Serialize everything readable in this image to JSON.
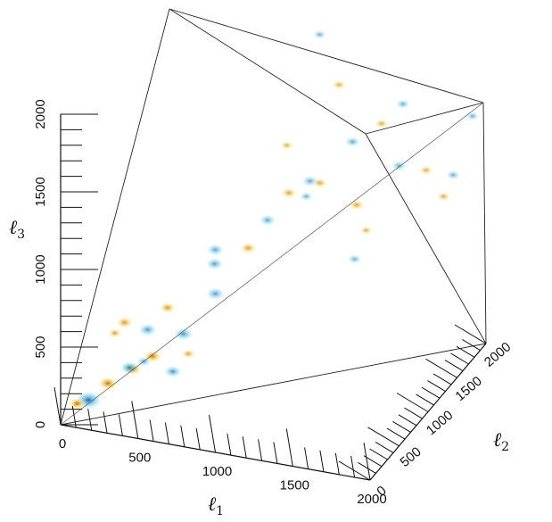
{
  "chart_data": {
    "type": "3d-isosurface",
    "axes": [
      {
        "name": "l1",
        "label": "ℓ",
        "subscript": "1",
        "ticks": [
          0,
          500,
          1000,
          1500,
          2000
        ],
        "range": [
          0,
          2000
        ]
      },
      {
        "name": "l2",
        "label": "ℓ",
        "subscript": "2",
        "ticks": [
          0,
          500,
          1000,
          1500,
          2000
        ],
        "range": [
          0,
          2000
        ]
      },
      {
        "name": "l3",
        "label": "ℓ",
        "subscript": "3",
        "ticks": [
          0,
          500,
          1000,
          1500,
          2000
        ],
        "range": [
          0,
          2000
        ]
      }
    ],
    "colors": {
      "positive_high": "#b85a1c",
      "positive_mid": "#e8a423",
      "positive_low": "#f5dc5a",
      "negative_low": "#6fd6ee",
      "negative_mid": "#47a6d6",
      "negative_high": "#1d4c9e"
    },
    "blobs": [
      {
        "pos": [
          150,
          80,
          150
        ],
        "sign": -1,
        "amp": 1.0,
        "size": 240
      },
      {
        "pos": [
          80,
          70,
          120
        ],
        "sign": 1,
        "amp": 1.0,
        "size": 150
      },
      {
        "pos": [
          260,
          120,
          260
        ],
        "sign": 1,
        "amp": 0.9,
        "size": 180
      },
      {
        "pos": [
          420,
          120,
          380
        ],
        "sign": 1,
        "amp": 0.8,
        "size": 170
      },
      {
        "pos": [
          350,
          250,
          320
        ],
        "sign": -1,
        "amp": 0.7,
        "size": 170
      },
      {
        "pos": [
          500,
          250,
          420
        ],
        "sign": 1,
        "amp": 0.8,
        "size": 170
      },
      {
        "pos": [
          620,
          280,
          330
        ],
        "sign": -1,
        "amp": 0.6,
        "size": 160
      },
      {
        "pos": [
          700,
          250,
          600
        ],
        "sign": -1,
        "amp": 0.5,
        "size": 180
      },
      {
        "pos": [
          420,
          380,
          520
        ],
        "sign": -1,
        "amp": 0.5,
        "size": 170
      },
      {
        "pos": [
          300,
          300,
          580
        ],
        "sign": 1,
        "amp": 0.5,
        "size": 160
      },
      {
        "pos": [
          560,
          350,
          700
        ],
        "sign": 1,
        "amp": 0.55,
        "size": 150
      },
      {
        "pos": [
          850,
          400,
          820
        ],
        "sign": -1,
        "amp": 0.45,
        "size": 170
      },
      {
        "pos": [
          800,
          520,
          950
        ],
        "sign": -1,
        "amp": 0.45,
        "size": 160
      },
      {
        "pos": [
          950,
          700,
          1000
        ],
        "sign": 1,
        "amp": 0.4,
        "size": 160
      },
      {
        "pos": [
          700,
          800,
          900
        ],
        "sign": -1,
        "amp": 0.4,
        "size": 160
      },
      {
        "pos": [
          1000,
          900,
          1100
        ],
        "sign": -1,
        "amp": 0.4,
        "size": 150
      },
      {
        "pos": [
          1100,
          1000,
          1250
        ],
        "sign": 1,
        "amp": 0.35,
        "size": 150
      },
      {
        "pos": [
          1200,
          1100,
          1300
        ],
        "sign": -1,
        "amp": 0.35,
        "size": 150
      },
      {
        "pos": [
          1300,
          1000,
          1350
        ],
        "sign": 1,
        "amp": 0.35,
        "size": 140
      },
      {
        "pos": [
          1400,
          1300,
          1500
        ],
        "sign": -1,
        "amp": 0.35,
        "size": 140
      },
      {
        "pos": [
          1550,
          1400,
          1600
        ],
        "sign": 1,
        "amp": 0.3,
        "size": 130
      },
      {
        "pos": [
          1650,
          1500,
          1700
        ],
        "sign": -1,
        "amp": 0.3,
        "size": 130
      },
      {
        "pos": [
          1500,
          1100,
          1200
        ],
        "sign": 1,
        "amp": 0.35,
        "size": 150
      },
      {
        "pos": [
          1700,
          1300,
          1400
        ],
        "sign": -1,
        "amp": 0.3,
        "size": 140
      },
      {
        "pos": [
          1800,
          1500,
          1300
        ],
        "sign": 1,
        "amp": 0.3,
        "size": 130
      },
      {
        "pos": [
          1900,
          1700,
          1200
        ],
        "sign": -1,
        "amp": 0.3,
        "size": 130
      },
      {
        "pos": [
          1800,
          1800,
          1000
        ],
        "sign": 1,
        "amp": 0.3,
        "size": 130
      },
      {
        "pos": [
          1950,
          1900,
          1500
        ],
        "sign": -1,
        "amp": 0.3,
        "size": 120
      },
      {
        "pos": [
          1200,
          1600,
          1700
        ],
        "sign": 1,
        "amp": 0.3,
        "size": 130
      },
      {
        "pos": [
          1000,
          1800,
          1900
        ],
        "sign": -1,
        "amp": 0.3,
        "size": 120
      },
      {
        "pos": [
          900,
          1500,
          1300
        ],
        "sign": 1,
        "amp": 0.3,
        "size": 120
      },
      {
        "pos": [
          1600,
          800,
          1000
        ],
        "sign": -1,
        "amp": 0.3,
        "size": 130
      },
      {
        "pos": [
          1750,
          600,
          1300
        ],
        "sign": 1,
        "amp": 0.3,
        "size": 120
      },
      {
        "pos": [
          1400,
          500,
          1500
        ],
        "sign": -1,
        "amp": 0.3,
        "size": 120
      },
      {
        "pos": [
          600,
          600,
          300
        ],
        "sign": 1,
        "amp": 0.4,
        "size": 130
      },
      {
        "pos": [
          350,
          500,
          250
        ],
        "sign": -1,
        "amp": 0.4,
        "size": 130
      },
      {
        "pos": [
          200,
          400,
          450
        ],
        "sign": 1,
        "amp": 0.45,
        "size": 130
      }
    ]
  }
}
